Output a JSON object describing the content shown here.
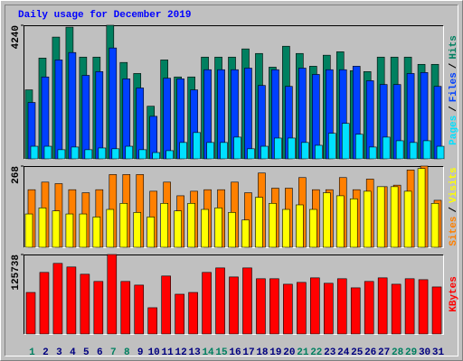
{
  "chart_data": [
    {
      "type": "bar",
      "title": "Daily usage for December 2019",
      "ylim": [
        0,
        4240
      ],
      "yticks": [
        4240
      ],
      "legend_separator": "/",
      "series": [
        {
          "name": "Hits",
          "color": "#008060",
          "values": [
            2190,
            3200,
            3865,
            4180,
            3230,
            3230,
            4240,
            3060,
            2710,
            1670,
            3140,
            2600,
            2600,
            3230,
            3230,
            3230,
            3490,
            3345,
            2910,
            3575,
            3345,
            2940,
            3290,
            3400,
            2800,
            2770,
            3230,
            3230,
            3230,
            3000,
            3000
          ]
        },
        {
          "name": "Files",
          "color": "#0040ff",
          "values": [
            1790,
            2600,
            3140,
            3375,
            2650,
            2770,
            3520,
            2540,
            2250,
            1350,
            2560,
            2540,
            2190,
            2830,
            2830,
            2830,
            2880,
            2330,
            2830,
            2300,
            2880,
            2680,
            2830,
            2830,
            2940,
            2480,
            2360,
            2360,
            2710,
            2740,
            2300
          ]
        },
        {
          "name": "Pages",
          "color": "#00e0ff",
          "values": [
            400,
            400,
            290,
            375,
            290,
            345,
            320,
            400,
            290,
            200,
            260,
            520,
            835,
            520,
            520,
            690,
            320,
            400,
            660,
            660,
            520,
            430,
            810,
            1125,
            780,
            375,
            690,
            575,
            520,
            575,
            400
          ]
        }
      ]
    },
    {
      "type": "bar",
      "ylim": [
        0,
        268
      ],
      "yticks": [
        268
      ],
      "legend_separator": "/",
      "series": [
        {
          "name": "Visits",
          "color": "#ff8000",
          "values": [
            190,
            215,
            210,
            190,
            180,
            190,
            240,
            240,
            240,
            185,
            215,
            170,
            185,
            190,
            190,
            215,
            180,
            245,
            195,
            195,
            230,
            190,
            190,
            230,
            190,
            225,
            200,
            205,
            255,
            268,
            155
          ]
        },
        {
          "name": "Sites",
          "color": "#ffff00",
          "values": [
            110,
            130,
            120,
            110,
            110,
            100,
            125,
            145,
            115,
            100,
            145,
            120,
            145,
            125,
            130,
            115,
            90,
            165,
            145,
            125,
            140,
            125,
            180,
            170,
            160,
            185,
            200,
            200,
            185,
            260,
            145
          ]
        }
      ]
    },
    {
      "type": "bar",
      "ylim": [
        0,
        125738
      ],
      "yticks": [
        125738
      ],
      "categories": [
        "1",
        "2",
        "3",
        "4",
        "5",
        "6",
        "7",
        "8",
        "9",
        "10",
        "11",
        "12",
        "13",
        "14",
        "15",
        "16",
        "17",
        "18",
        "19",
        "20",
        "21",
        "22",
        "23",
        "24",
        "25",
        "26",
        "27",
        "28",
        "29",
        "30",
        "31"
      ],
      "category_colors": [
        "#008060",
        "#000080",
        "#000080",
        "#000080",
        "#000080",
        "#000080",
        "#008060",
        "#008060",
        "#000080",
        "#000080",
        "#000080",
        "#000080",
        "#000080",
        "#008060",
        "#008060",
        "#000080",
        "#000080",
        "#000080",
        "#000080",
        "#000080",
        "#008060",
        "#008060",
        "#000080",
        "#000080",
        "#000080",
        "#000080",
        "#000080",
        "#008060",
        "#008060",
        "#000080",
        "#000080"
      ],
      "series": [
        {
          "name": "KBytes",
          "color": "#ff0000",
          "values": [
            65700,
            97400,
            111700,
            106000,
            94500,
            83100,
            125738,
            83100,
            77300,
            41500,
            91700,
            62900,
            65700,
            97400,
            104500,
            90200,
            104500,
            87400,
            87400,
            78700,
            81600,
            88800,
            80200,
            87400,
            73000,
            83100,
            88800,
            78700,
            87400,
            85900,
            74400
          ]
        }
      ]
    }
  ]
}
